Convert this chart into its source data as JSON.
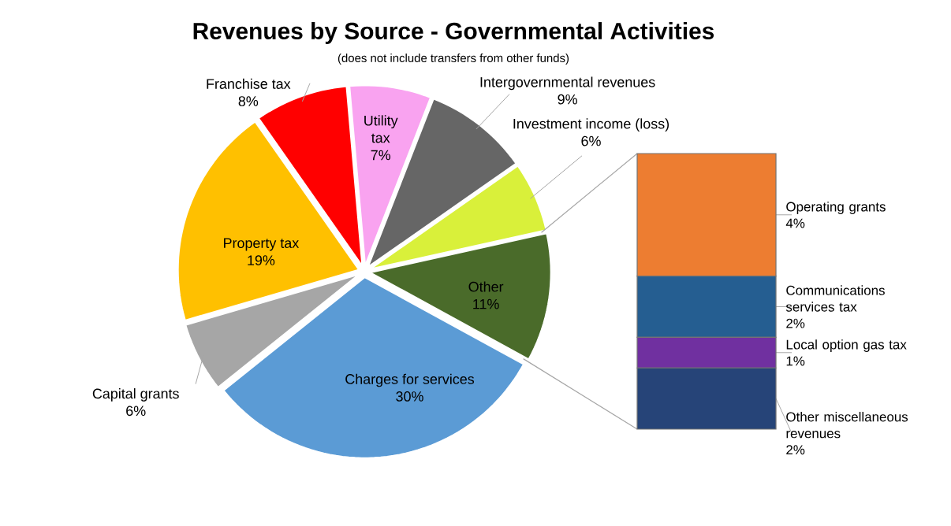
{
  "chart_data": [
    {
      "type": "pie",
      "title": "Revenues by Source - Governmental Activities",
      "subtitle": "(does not include transfers from other funds)",
      "categories": [
        "Utility tax",
        "Intergovernmental revenues",
        "Investment income (loss)",
        "Other",
        "Charges for services",
        "Capital grants",
        "Property tax",
        "Franchise tax"
      ],
      "values": [
        7,
        9,
        6,
        11,
        30,
        6,
        19,
        8
      ],
      "value_labels": [
        "7%",
        "9%",
        "6%",
        "11%",
        "30%",
        "6%",
        "19%",
        "8%"
      ],
      "colors": [
        "#f9a3f0",
        "#666666",
        "#d9f03a",
        "#4a6b2a",
        "#5b9bd5",
        "#a6a6a6",
        "#ffc000",
        "#ff0000"
      ]
    },
    {
      "type": "bar",
      "stacked": true,
      "categories": [
        null
      ],
      "series": [
        {
          "name": "Other miscellaneous revenues",
          "color": "#264478",
          "values": [
            2
          ],
          "value_labels": [
            "2%"
          ]
        },
        {
          "name": "Local option gas tax",
          "color": "#7030a0",
          "values": [
            1
          ],
          "value_labels": [
            "1%"
          ]
        },
        {
          "name": "Communications services tax",
          "color": "#255e91",
          "values": [
            2
          ],
          "value_labels": [
            "2%"
          ]
        },
        {
          "name": "Operating grants",
          "color": "#ed7d31",
          "values": [
            4
          ],
          "value_labels": [
            "4%"
          ]
        }
      ]
    }
  ]
}
